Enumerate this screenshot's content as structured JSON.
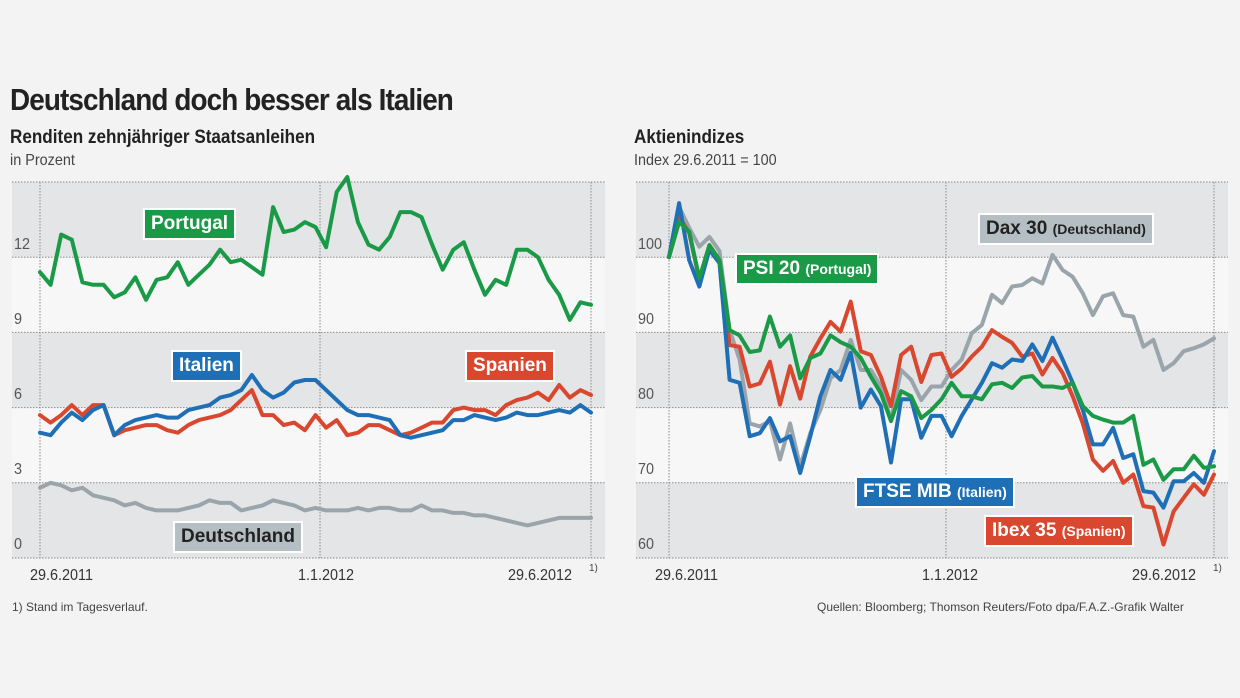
{
  "title": "Deutschland doch besser als Italien",
  "footnote": "1) Stand im Tagesverlauf.",
  "source": "Quellen: Bloomberg; Thomson Reuters/Foto dpa/F.A.Z.-Grafik Walter",
  "chart_data": [
    {
      "type": "line",
      "title": "Renditen zehnjähriger Staatsanleihen",
      "ylabel": "in Prozent",
      "xlim": [
        "29.6.2011",
        "29.6.2012"
      ],
      "x_ticks": [
        "29.6.2011",
        "1.1.2012",
        "29.6.2012"
      ],
      "x_tick_note": "1)",
      "ylim": [
        0,
        15
      ],
      "y_ticks": [
        "0",
        "3",
        "6",
        "9",
        "12"
      ],
      "grid": true,
      "series": [
        {
          "name": "Portugal",
          "color": "#1a9a47",
          "values": [
            11.4,
            10.9,
            12.9,
            12.7,
            11.0,
            10.9,
            10.9,
            10.4,
            10.6,
            11.2,
            10.3,
            11.1,
            11.2,
            11.8,
            10.9,
            11.3,
            11.7,
            12.3,
            11.8,
            11.9,
            11.6,
            11.3,
            14.0,
            13.0,
            13.1,
            13.4,
            13.2,
            12.4,
            14.6,
            15.2,
            13.4,
            12.5,
            12.3,
            12.8,
            13.8,
            13.8,
            13.6,
            12.5,
            11.5,
            12.3,
            12.6,
            11.5,
            10.5,
            11.1,
            10.9,
            12.3,
            12.3,
            12.0,
            11.1,
            10.5,
            9.5,
            10.2,
            10.1
          ]
        },
        {
          "name": "Italien",
          "color": "#1e6fb5",
          "values": [
            5.0,
            4.9,
            5.4,
            5.8,
            5.5,
            5.9,
            6.1,
            4.9,
            5.3,
            5.5,
            5.6,
            5.7,
            5.6,
            5.6,
            5.9,
            6.0,
            6.1,
            6.4,
            6.5,
            6.7,
            7.3,
            6.7,
            6.4,
            6.6,
            7.0,
            7.1,
            7.1,
            6.7,
            6.3,
            5.9,
            5.7,
            5.7,
            5.6,
            5.5,
            4.9,
            4.8,
            4.9,
            5.0,
            5.1,
            5.5,
            5.5,
            5.7,
            5.6,
            5.5,
            5.6,
            5.8,
            5.7,
            5.7,
            5.8,
            5.9,
            5.8,
            6.1,
            5.8
          ]
        },
        {
          "name": "Spanien",
          "color": "#d9472f",
          "values": [
            5.7,
            5.4,
            5.7,
            6.1,
            5.7,
            6.1,
            6.1,
            4.9,
            5.1,
            5.2,
            5.3,
            5.3,
            5.1,
            5.0,
            5.3,
            5.5,
            5.6,
            5.7,
            5.9,
            6.3,
            6.7,
            5.7,
            5.7,
            5.3,
            5.4,
            5.1,
            5.7,
            5.2,
            5.5,
            4.9,
            5.0,
            5.3,
            5.3,
            5.1,
            4.9,
            5.0,
            5.2,
            5.4,
            5.4,
            5.9,
            6.0,
            5.9,
            5.9,
            5.7,
            6.1,
            6.3,
            6.4,
            6.6,
            6.3,
            6.9,
            6.4,
            6.7,
            6.5
          ]
        },
        {
          "name": "Deutschland",
          "color": "#9aa5ab",
          "values": [
            2.8,
            3.0,
            2.9,
            2.7,
            2.8,
            2.5,
            2.4,
            2.3,
            2.1,
            2.2,
            2.0,
            1.9,
            1.9,
            1.9,
            2.0,
            2.1,
            2.3,
            2.2,
            2.2,
            1.9,
            2.0,
            2.1,
            2.3,
            2.2,
            2.1,
            1.9,
            2.0,
            1.9,
            1.9,
            1.9,
            2.0,
            1.9,
            2.0,
            2.0,
            1.9,
            1.9,
            2.1,
            1.9,
            1.9,
            1.8,
            1.8,
            1.7,
            1.7,
            1.6,
            1.5,
            1.4,
            1.3,
            1.4,
            1.5,
            1.6,
            1.6,
            1.6,
            1.6
          ]
        }
      ]
    },
    {
      "type": "line",
      "title": "Aktienindizes",
      "ylabel": "Index 29.6.2011 = 100",
      "xlim": [
        "29.6.2011",
        "29.6.2012"
      ],
      "x_ticks": [
        "29.6.2011",
        "1.1.2012",
        "29.6.2012"
      ],
      "x_tick_note": "1)",
      "ylim": [
        60,
        110
      ],
      "y_ticks": [
        "60",
        "70",
        "80",
        "90",
        "100"
      ],
      "grid": true,
      "series": [
        {
          "name": "Dax 30",
          "sub": "(Deutschland)",
          "color": "#9aa5ab",
          "values": [
            100,
            106.7,
            103.9,
            101.4,
            102.7,
            100.8,
            90.3,
            86.4,
            77.9,
            77.5,
            78.2,
            73.1,
            77.9,
            72.2,
            76.6,
            79.7,
            83.9,
            85.0,
            89.0,
            85.0,
            85.0,
            82.8,
            78.4,
            85.0,
            83.7,
            81.0,
            82.8,
            82.8,
            85.0,
            86.4,
            89.9,
            91.0,
            95.0,
            93.9,
            96.1,
            96.3,
            97.2,
            96.5,
            100.3,
            98.3,
            97.4,
            95.2,
            92.3,
            94.8,
            95.2,
            92.3,
            92.1,
            88.1,
            89.0,
            85.0,
            85.9,
            87.5,
            87.9,
            88.4,
            89.2
          ]
        },
        {
          "name": "Ibex 35",
          "sub": "(Spanien)",
          "color": "#d9472f",
          "values": [
            100,
            105.4,
            103.2,
            97.0,
            101.6,
            99.6,
            88.3,
            88.1,
            82.8,
            83.2,
            86.1,
            80.4,
            85.5,
            81.2,
            86.8,
            89.2,
            91.4,
            90.1,
            94.1,
            87.5,
            87.0,
            84.1,
            80.2,
            87.0,
            88.1,
            83.4,
            87.0,
            87.2,
            84.1,
            85.2,
            86.8,
            88.1,
            90.3,
            89.4,
            88.6,
            86.8,
            87.2,
            84.4,
            86.6,
            84.6,
            81.5,
            77.9,
            73.1,
            71.6,
            72.9,
            70.0,
            71.1,
            66.9,
            66.7,
            61.8,
            66.2,
            68.0,
            69.8,
            68.4,
            71.1
          ]
        },
        {
          "name": "FTSE MIB",
          "sub": "(Italien)",
          "color": "#1e6fb5",
          "values": [
            100,
            107.2,
            99.6,
            96.1,
            101.0,
            99.2,
            83.7,
            83.3,
            76.2,
            76.6,
            78.6,
            75.5,
            76.2,
            71.3,
            76.2,
            81.5,
            85.0,
            83.7,
            87.3,
            80.0,
            82.4,
            80.2,
            72.7,
            81.1,
            81.1,
            76.0,
            78.9,
            78.9,
            76.2,
            78.9,
            81.1,
            83.3,
            85.9,
            85.3,
            86.4,
            86.2,
            88.4,
            86.2,
            89.3,
            86.4,
            83.3,
            79.7,
            75.1,
            75.1,
            77.3,
            73.3,
            73.8,
            68.9,
            68.7,
            66.7,
            70.2,
            70.2,
            71.3,
            70.0,
            74.2
          ]
        },
        {
          "name": "PSI 20",
          "sub": "(Portugal)",
          "color": "#1a9a47",
          "values": [
            100,
            104.7,
            103.4,
            97.2,
            101.6,
            99.6,
            90.3,
            89.6,
            87.4,
            87.6,
            92.1,
            88.1,
            89.6,
            83.9,
            86.6,
            87.2,
            89.6,
            88.7,
            88.1,
            86.6,
            84.1,
            81.9,
            78.2,
            82.2,
            81.5,
            78.6,
            79.7,
            81.1,
            83.3,
            81.5,
            81.5,
            81.1,
            83.1,
            83.3,
            82.6,
            84.0,
            84.2,
            82.8,
            82.8,
            82.6,
            83.3,
            80.2,
            78.9,
            78.4,
            78.0,
            78.0,
            78.9,
            72.4,
            73.1,
            70.4,
            71.8,
            71.8,
            73.6,
            72.0,
            72.2
          ]
        }
      ]
    }
  ]
}
